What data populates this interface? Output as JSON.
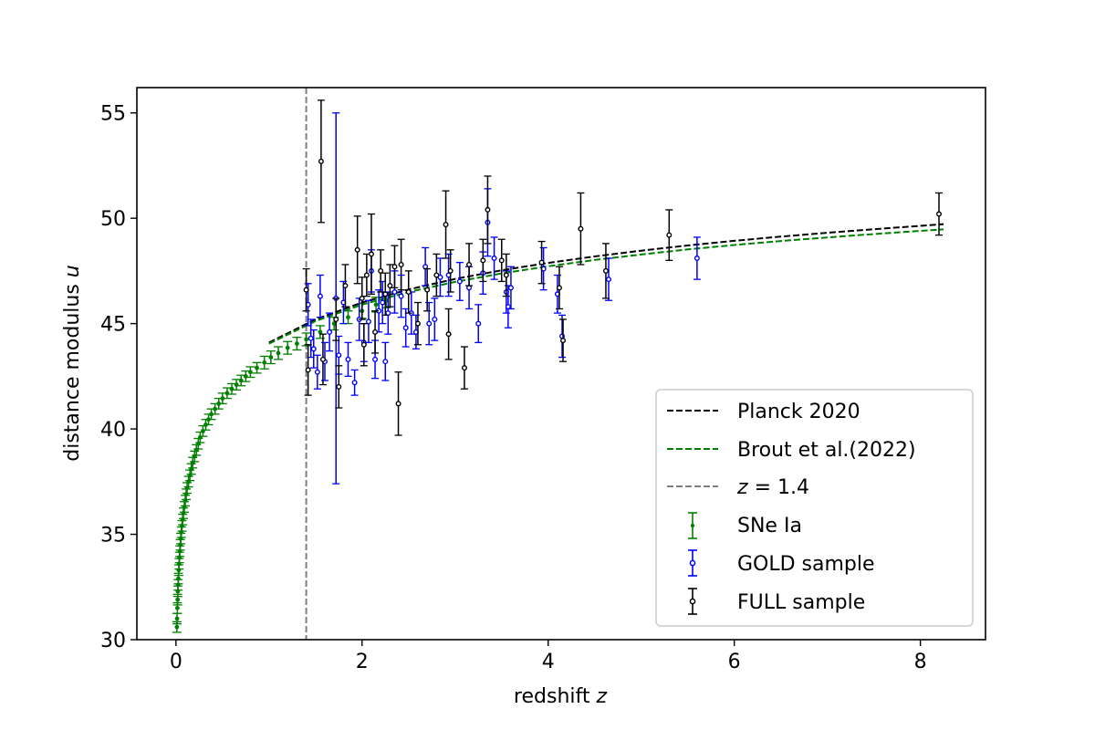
{
  "chart_data": {
    "type": "scatter",
    "xlabel": "redshift",
    "xlabel_symbol": "z",
    "ylabel": "distance modulus",
    "ylabel_symbol": "u",
    "xlim": [
      -0.42,
      8.7
    ],
    "ylim": [
      30,
      56.2
    ],
    "x_ticks": [
      0,
      2,
      4,
      6,
      8
    ],
    "y_ticks": [
      30,
      35,
      40,
      45,
      50,
      55
    ],
    "grid": false,
    "legend_position": "bottom-right",
    "colors": {
      "sne": "#008000",
      "gold": "#0000ff",
      "full": "#000000",
      "planck": "#000000",
      "brout": "#008000",
      "zline": "#808080"
    },
    "vline": {
      "x": 1.4,
      "label_prefix": "z",
      "label_value": "= 1.4"
    },
    "legend": {
      "planck": "Planck 2020",
      "brout": "Brout et al.(2022)",
      "zline": "= 1.4",
      "sne": "SNe Ia",
      "gold": "GOLD sample",
      "full": "FULL sample"
    },
    "model_curves": [
      {
        "name": "Planck 2020",
        "color": "#000000",
        "x": [
          1.0,
          1.5,
          2.0,
          2.5,
          3.0,
          3.5,
          4.0,
          4.5,
          5.0,
          5.5,
          6.0,
          6.5,
          7.0,
          7.5,
          8.0,
          8.25
        ],
        "y": [
          44.1,
          45.2,
          46.0,
          46.62,
          47.12,
          47.53,
          47.88,
          48.19,
          48.46,
          48.71,
          48.93,
          49.13,
          49.31,
          49.48,
          49.64,
          49.72
        ]
      },
      {
        "name": "Brout et al.(2022)",
        "color": "#008000",
        "x": [
          1.0,
          1.5,
          2.0,
          2.5,
          3.0,
          3.5,
          4.0,
          4.5,
          5.0,
          5.5,
          6.0,
          6.5,
          7.0,
          7.5,
          8.0,
          8.25
        ],
        "y": [
          44.05,
          45.12,
          45.9,
          46.5,
          46.98,
          47.38,
          47.72,
          48.02,
          48.28,
          48.52,
          48.73,
          48.92,
          49.09,
          49.25,
          49.4,
          49.47
        ]
      }
    ],
    "sne_ia": {
      "name": "SNe Ia",
      "points": [
        [
          0.01,
          30.6,
          0.25
        ],
        [
          0.012,
          31.0,
          0.25
        ],
        [
          0.015,
          31.5,
          0.25
        ],
        [
          0.018,
          31.9,
          0.25
        ],
        [
          0.02,
          32.3,
          0.25
        ],
        [
          0.023,
          32.6,
          0.25
        ],
        [
          0.026,
          32.9,
          0.25
        ],
        [
          0.03,
          33.3,
          0.25
        ],
        [
          0.034,
          33.6,
          0.25
        ],
        [
          0.038,
          33.9,
          0.25
        ],
        [
          0.042,
          34.2,
          0.25
        ],
        [
          0.047,
          34.5,
          0.25
        ],
        [
          0.052,
          34.8,
          0.25
        ],
        [
          0.058,
          35.1,
          0.25
        ],
        [
          0.065,
          35.4,
          0.25
        ],
        [
          0.072,
          35.7,
          0.25
        ],
        [
          0.08,
          36.0,
          0.25
        ],
        [
          0.09,
          36.3,
          0.25
        ],
        [
          0.1,
          36.6,
          0.25
        ],
        [
          0.11,
          36.9,
          0.25
        ],
        [
          0.12,
          37.2,
          0.25
        ],
        [
          0.135,
          37.5,
          0.25
        ],
        [
          0.15,
          37.8,
          0.25
        ],
        [
          0.165,
          38.1,
          0.25
        ],
        [
          0.18,
          38.4,
          0.25
        ],
        [
          0.2,
          38.7,
          0.25
        ],
        [
          0.22,
          39.0,
          0.25
        ],
        [
          0.24,
          39.3,
          0.25
        ],
        [
          0.26,
          39.6,
          0.25
        ],
        [
          0.29,
          39.9,
          0.25
        ],
        [
          0.32,
          40.2,
          0.25
        ],
        [
          0.35,
          40.45,
          0.25
        ],
        [
          0.38,
          40.7,
          0.25
        ],
        [
          0.42,
          40.95,
          0.25
        ],
        [
          0.46,
          41.2,
          0.25
        ],
        [
          0.5,
          41.45,
          0.25
        ],
        [
          0.55,
          41.7,
          0.25
        ],
        [
          0.6,
          41.9,
          0.25
        ],
        [
          0.65,
          42.1,
          0.25
        ],
        [
          0.7,
          42.3,
          0.25
        ],
        [
          0.75,
          42.5,
          0.25
        ],
        [
          0.8,
          42.7,
          0.25
        ],
        [
          0.87,
          42.9,
          0.25
        ],
        [
          0.95,
          43.15,
          0.3
        ],
        [
          1.02,
          43.4,
          0.3
        ],
        [
          1.1,
          43.6,
          0.3
        ],
        [
          1.2,
          43.85,
          0.3
        ],
        [
          1.3,
          44.05,
          0.3
        ],
        [
          1.4,
          44.25,
          0.3
        ],
        [
          1.55,
          44.6,
          0.3
        ],
        [
          1.7,
          45.0,
          0.3
        ],
        [
          1.85,
          45.3,
          0.3
        ],
        [
          2.0,
          45.6,
          0.35
        ],
        [
          2.15,
          45.9,
          0.35
        ],
        [
          2.26,
          46.1,
          0.35
        ]
      ]
    },
    "gold_sample": {
      "name": "GOLD sample",
      "points": [
        [
          1.42,
          45.9,
          1.0
        ],
        [
          1.45,
          44.3,
          0.9
        ],
        [
          1.48,
          43.8,
          0.9
        ],
        [
          1.52,
          42.7,
          0.8
        ],
        [
          1.55,
          46.3,
          1.0
        ],
        [
          1.6,
          43.2,
          0.9
        ],
        [
          1.65,
          44.6,
          0.9
        ],
        [
          1.72,
          46.2,
          8.8
        ],
        [
          1.75,
          43.5,
          0.9
        ],
        [
          1.8,
          46.0,
          1.0
        ],
        [
          1.85,
          43.3,
          0.8
        ],
        [
          1.92,
          42.2,
          0.6
        ],
        [
          1.97,
          45.2,
          1.0
        ],
        [
          2.02,
          44.1,
          0.9
        ],
        [
          2.07,
          45.1,
          1.0
        ],
        [
          2.1,
          47.5,
          1.0
        ],
        [
          2.14,
          43.3,
          0.9
        ],
        [
          2.18,
          45.6,
          1.0
        ],
        [
          2.22,
          46.0,
          1.0
        ],
        [
          2.25,
          43.2,
          0.9
        ],
        [
          2.28,
          45.5,
          1.0
        ],
        [
          2.35,
          46.5,
          1.0
        ],
        [
          2.42,
          46.3,
          1.0
        ],
        [
          2.47,
          44.8,
          0.9
        ],
        [
          2.53,
          45.5,
          1.0
        ],
        [
          2.58,
          44.6,
          0.8
        ],
        [
          2.68,
          47.7,
          0.9
        ],
        [
          2.72,
          45.0,
          1.0
        ],
        [
          2.78,
          45.2,
          1.0
        ],
        [
          2.84,
          47.2,
          0.9
        ],
        [
          2.93,
          47.3,
          1.0
        ],
        [
          3.05,
          47.0,
          0.9
        ],
        [
          3.15,
          46.7,
          1.0
        ],
        [
          3.25,
          45.0,
          0.9
        ],
        [
          3.3,
          47.4,
          1.0
        ],
        [
          3.35,
          49.8,
          1.6
        ],
        [
          3.42,
          48.1,
          1.0
        ],
        [
          3.55,
          46.5,
          1.0
        ],
        [
          3.57,
          45.8,
          1.0
        ],
        [
          3.6,
          46.7,
          1.0
        ],
        [
          3.95,
          47.6,
          1.0
        ],
        [
          4.1,
          46.4,
          0.9
        ],
        [
          4.15,
          44.4,
          1.0
        ],
        [
          4.65,
          47.1,
          1.0
        ],
        [
          5.6,
          48.1,
          1.0
        ]
      ]
    },
    "full_sample": {
      "name": "FULL sample",
      "points": [
        [
          1.4,
          46.6,
          1.0
        ],
        [
          1.42,
          42.8,
          1.2
        ],
        [
          1.56,
          52.7,
          2.9
        ],
        [
          1.58,
          43.3,
          1.2
        ],
        [
          1.72,
          45.2,
          1.0
        ],
        [
          1.75,
          42.0,
          1.0
        ],
        [
          1.82,
          46.8,
          1.0
        ],
        [
          1.95,
          48.5,
          1.6
        ],
        [
          2.0,
          46.2,
          1.0
        ],
        [
          2.02,
          44.0,
          1.0
        ],
        [
          2.05,
          47.3,
          1.0
        ],
        [
          2.1,
          48.3,
          1.9
        ],
        [
          2.14,
          44.6,
          1.0
        ],
        [
          2.2,
          47.5,
          1.0
        ],
        [
          2.25,
          46.4,
          1.0
        ],
        [
          2.3,
          46.8,
          1.0
        ],
        [
          2.35,
          47.7,
          1.0
        ],
        [
          2.39,
          41.2,
          1.5
        ],
        [
          2.42,
          47.8,
          1.2
        ],
        [
          2.5,
          46.5,
          1.0
        ],
        [
          2.6,
          45.0,
          1.0
        ],
        [
          2.7,
          46.6,
          1.0
        ],
        [
          2.8,
          47.3,
          1.0
        ],
        [
          2.9,
          49.7,
          1.6
        ],
        [
          2.93,
          44.5,
          1.2
        ],
        [
          2.95,
          47.5,
          1.0
        ],
        [
          3.1,
          42.9,
          1.0
        ],
        [
          3.15,
          47.8,
          1.0
        ],
        [
          3.3,
          48.0,
          1.0
        ],
        [
          3.35,
          50.4,
          1.6
        ],
        [
          3.5,
          48.0,
          1.0
        ],
        [
          3.55,
          47.3,
          1.0
        ],
        [
          3.93,
          47.9,
          1.0
        ],
        [
          4.12,
          46.7,
          1.0
        ],
        [
          4.16,
          44.2,
          1.0
        ],
        [
          4.35,
          49.5,
          1.7
        ],
        [
          4.62,
          47.5,
          1.3
        ],
        [
          5.3,
          49.2,
          1.2
        ],
        [
          8.2,
          50.2,
          1.0
        ]
      ]
    }
  }
}
